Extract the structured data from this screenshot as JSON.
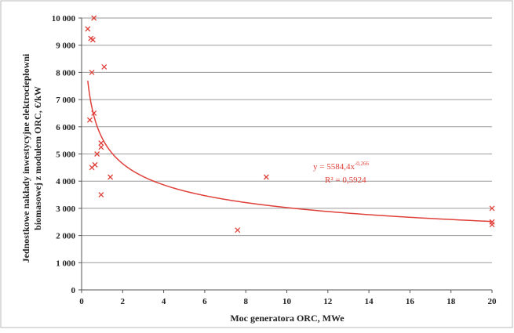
{
  "chart_data": {
    "type": "scatter",
    "xlabel": "Moc generatora ORC, MWe",
    "ylabel_lines": [
      "Jednostkowe nakłady inwestycyjne elektrociepłowni",
      "biomasowej z modułem ORC, €/kW"
    ],
    "xlim": [
      0,
      20
    ],
    "ylim": [
      0,
      10000
    ],
    "x_ticks": [
      0,
      2,
      4,
      6,
      8,
      10,
      12,
      14,
      16,
      18,
      20
    ],
    "y_ticks": [
      0,
      1000,
      2000,
      3000,
      4000,
      5000,
      6000,
      7000,
      8000,
      9000,
      10000
    ],
    "x_tick_labels": [
      "0",
      "2",
      "4",
      "6",
      "8",
      "10",
      "12",
      "14",
      "16",
      "18",
      "20"
    ],
    "y_tick_labels": [
      "0",
      "1 000",
      "2 000",
      "3 000",
      "4 000",
      "5 000",
      "6 000",
      "7 000",
      "8 000",
      "9 000",
      "10 000"
    ],
    "grid": {
      "horizontal": true,
      "vertical": false
    },
    "series": [
      {
        "marker": "x",
        "color": "#e0403a",
        "points": [
          {
            "x": 0.3,
            "y": 9600
          },
          {
            "x": 0.6,
            "y": 10000
          },
          {
            "x": 0.45,
            "y": 9250
          },
          {
            "x": 0.55,
            "y": 9200
          },
          {
            "x": 0.5,
            "y": 8000
          },
          {
            "x": 1.1,
            "y": 8200
          },
          {
            "x": 0.6,
            "y": 6500
          },
          {
            "x": 0.4,
            "y": 6250
          },
          {
            "x": 0.95,
            "y": 5400
          },
          {
            "x": 0.95,
            "y": 5250
          },
          {
            "x": 0.75,
            "y": 5000
          },
          {
            "x": 0.65,
            "y": 4600
          },
          {
            "x": 0.5,
            "y": 4500
          },
          {
            "x": 1.4,
            "y": 4150
          },
          {
            "x": 0.95,
            "y": 3500
          },
          {
            "x": 7.6,
            "y": 2200
          },
          {
            "x": 9.0,
            "y": 4150
          },
          {
            "x": 20.0,
            "y": 3000
          },
          {
            "x": 20.0,
            "y": 2500
          },
          {
            "x": 20.0,
            "y": 2400
          }
        ]
      }
    ],
    "trendline": {
      "type": "power",
      "a": 5584.4,
      "b": -0.266,
      "x_from": 0.3,
      "x_to": 20,
      "color": "#e0403a"
    },
    "annotations": {
      "equation_base": "y = 5584,4x",
      "equation_exp": "-0,266",
      "r2": "R² = 0,5924"
    }
  }
}
